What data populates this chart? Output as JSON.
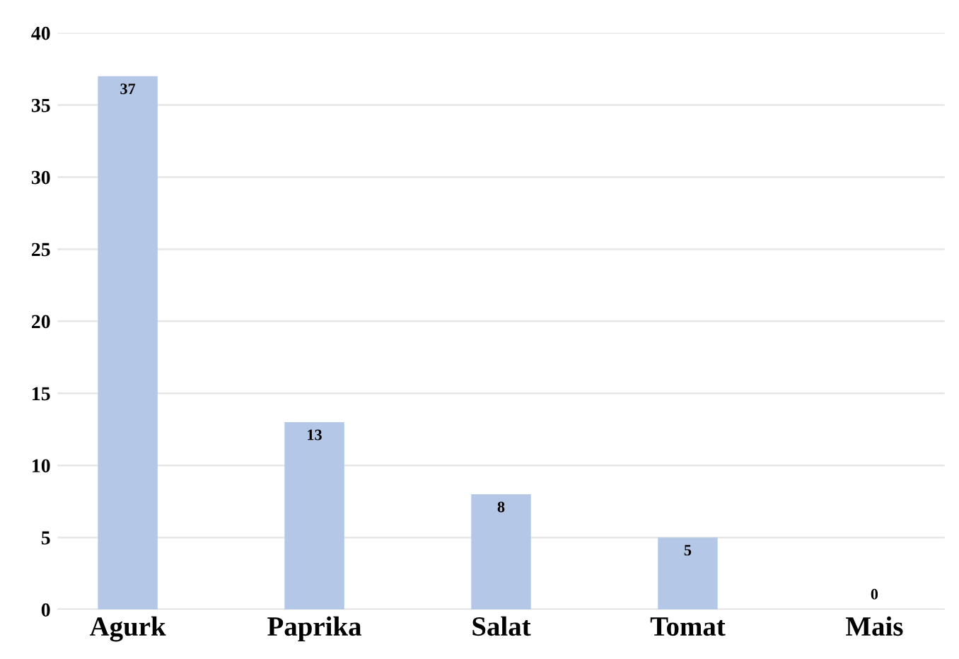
{
  "chart_data": {
    "type": "bar",
    "categories": [
      "Agurk",
      "Paprika",
      "Salat",
      "Tomat",
      "Mais"
    ],
    "values": [
      37,
      13,
      8,
      5,
      0
    ],
    "color": "#b4c7e7",
    "ylim": [
      0,
      40
    ],
    "yticks": [
      0,
      5,
      10,
      15,
      20,
      25,
      30,
      35,
      40
    ],
    "grid": "y",
    "data_labels": true
  }
}
